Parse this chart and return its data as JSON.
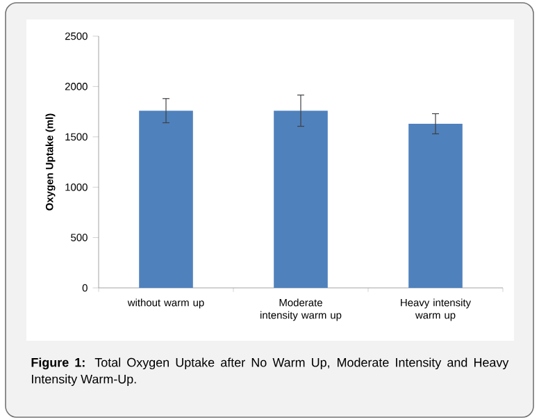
{
  "chart_data": {
    "type": "bar",
    "ylabel": "Oxygen Uptake (ml)",
    "categories": [
      "without warm up",
      "Moderate intensity warm up",
      "Heavy intensity warm up"
    ],
    "values": [
      1760,
      1760,
      1630
    ],
    "errors": [
      120,
      155,
      100
    ],
    "color": "#4f81bd",
    "ylim": [
      0,
      2500
    ],
    "yticks": [
      0,
      500,
      1000,
      1500,
      2000,
      2500
    ],
    "annotations": [
      "**Figure 1:** Total Oxygen Uptake after No Warm Up, Moderate Intensity and Heavy Intensity Warm-Up."
    ]
  }
}
